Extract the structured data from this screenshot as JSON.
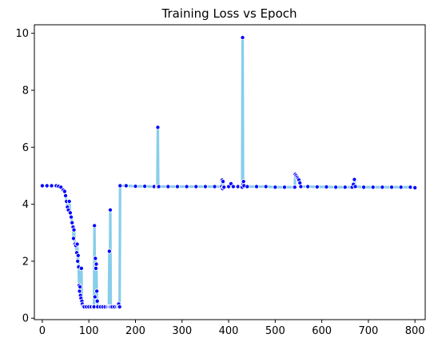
{
  "chart_data": {
    "type": "line",
    "title": "Training Loss vs Epoch",
    "xlabel": "",
    "ylabel": "",
    "xlim": [
      -17,
      822
    ],
    "ylim": [
      -0.05,
      10.3
    ],
    "xticks": [
      0,
      100,
      200,
      300,
      400,
      500,
      600,
      700,
      800
    ],
    "yticks": [
      0,
      2,
      4,
      6,
      8,
      10
    ],
    "grid": false,
    "line_color": "#87ceeb",
    "marker_color": "#0000ff",
    "marker_edge_color": "#ffffff",
    "series": [
      {
        "points": [
          [
            0,
            4.65
          ],
          [
            10,
            4.65
          ],
          [
            20,
            4.65
          ],
          [
            30,
            4.65
          ],
          [
            35,
            4.63
          ],
          [
            40,
            4.6
          ],
          [
            45,
            4.5
          ],
          [
            48,
            4.45
          ],
          [
            50,
            4.3
          ],
          [
            52,
            4.1
          ],
          [
            54,
            3.9
          ],
          [
            56,
            3.8
          ],
          [
            58,
            4.1
          ],
          [
            60,
            3.7
          ],
          [
            62,
            3.55
          ],
          [
            64,
            3.35
          ],
          [
            66,
            3.2
          ],
          [
            67,
            2.8
          ],
          [
            68,
            3.1
          ],
          [
            70,
            2.6
          ],
          [
            72,
            2.55
          ],
          [
            74,
            2.3
          ],
          [
            75,
            2.6
          ],
          [
            76,
            2.0
          ],
          [
            77,
            2.2
          ],
          [
            78,
            1.8
          ],
          [
            79,
            1.15
          ],
          [
            80,
            0.95
          ],
          [
            81,
            1.1
          ],
          [
            82,
            0.8
          ],
          [
            83,
            0.7
          ],
          [
            84,
            1.75
          ],
          [
            85,
            0.6
          ],
          [
            86,
            0.5
          ],
          [
            88,
            0.42
          ],
          [
            90,
            0.4
          ],
          [
            95,
            0.4
          ],
          [
            100,
            0.4
          ],
          [
            105,
            0.4
          ],
          [
            110,
            0.4
          ],
          [
            111,
            0.4
          ],
          [
            112,
            3.25
          ],
          [
            113,
            0.75
          ],
          [
            114,
            2.1
          ],
          [
            115,
            1.75
          ],
          [
            116,
            1.9
          ],
          [
            117,
            0.95
          ],
          [
            118,
            0.6
          ],
          [
            119,
            0.4
          ],
          [
            125,
            0.4
          ],
          [
            130,
            0.4
          ],
          [
            135,
            0.4
          ],
          [
            140,
            0.4
          ],
          [
            143,
            0.4
          ],
          [
            144,
            2.35
          ],
          [
            145,
            0.4
          ],
          [
            146,
            3.8
          ],
          [
            147,
            0.4
          ],
          [
            150,
            0.4
          ],
          [
            155,
            0.4
          ],
          [
            160,
            0.4
          ],
          [
            163,
            0.4
          ],
          [
            164,
            0.5
          ],
          [
            165,
            0.4
          ],
          [
            166,
            0.4
          ],
          [
            167,
            4.65
          ],
          [
            180,
            4.65
          ],
          [
            200,
            4.63
          ],
          [
            220,
            4.63
          ],
          [
            240,
            4.62
          ],
          [
            247,
            4.6
          ],
          [
            248,
            6.7
          ],
          [
            249,
            4.6
          ],
          [
            250,
            4.62
          ],
          [
            270,
            4.62
          ],
          [
            290,
            4.62
          ],
          [
            310,
            4.62
          ],
          [
            330,
            4.62
          ],
          [
            350,
            4.62
          ],
          [
            370,
            4.62
          ],
          [
            385,
            4.62
          ],
          [
            386,
            4.85
          ],
          [
            387,
            4.55
          ],
          [
            388,
            4.8
          ],
          [
            389,
            4.6
          ],
          [
            390,
            4.6
          ],
          [
            400,
            4.62
          ],
          [
            405,
            4.72
          ],
          [
            410,
            4.62
          ],
          [
            420,
            4.62
          ],
          [
            428,
            4.62
          ],
          [
            429,
            4.6
          ],
          [
            430,
            9.85
          ],
          [
            431,
            4.7
          ],
          [
            432,
            4.8
          ],
          [
            433,
            4.65
          ],
          [
            440,
            4.62
          ],
          [
            460,
            4.62
          ],
          [
            480,
            4.62
          ],
          [
            500,
            4.6
          ],
          [
            520,
            4.6
          ],
          [
            540,
            4.6
          ],
          [
            542,
            4.6
          ],
          [
            543,
            5.05
          ],
          [
            545,
            5.0
          ],
          [
            547,
            4.95
          ],
          [
            549,
            4.9
          ],
          [
            551,
            4.85
          ],
          [
            553,
            4.75
          ],
          [
            555,
            4.62
          ],
          [
            570,
            4.62
          ],
          [
            590,
            4.61
          ],
          [
            610,
            4.61
          ],
          [
            630,
            4.6
          ],
          [
            650,
            4.6
          ],
          [
            665,
            4.6
          ],
          [
            668,
            4.7
          ],
          [
            670,
            4.87
          ],
          [
            672,
            4.62
          ],
          [
            690,
            4.6
          ],
          [
            710,
            4.6
          ],
          [
            730,
            4.6
          ],
          [
            750,
            4.6
          ],
          [
            770,
            4.6
          ],
          [
            790,
            4.6
          ],
          [
            800,
            4.58
          ]
        ]
      }
    ]
  }
}
